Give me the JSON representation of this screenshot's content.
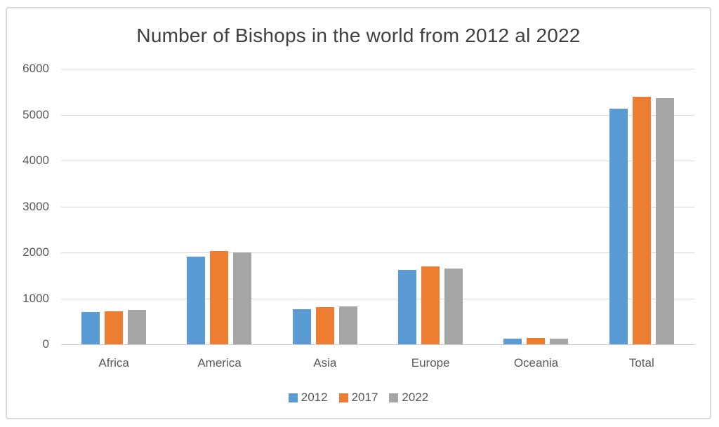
{
  "chart_data": {
    "type": "bar",
    "title": "Number of Bishops in the world from 2012 al 2022",
    "categories": [
      "Africa",
      "America",
      "Asia",
      "Europe",
      "Oceania",
      "Total"
    ],
    "series": [
      {
        "name": "2012",
        "color": "#5B9BD5",
        "values": [
          707,
          1904,
          768,
          1625,
          129,
          5133
        ]
      },
      {
        "name": "2017",
        "color": "#ED7D31",
        "values": [
          718,
          2034,
          804,
          1700,
          133,
          5389
        ]
      },
      {
        "name": "2022",
        "color": "#A5A5A5",
        "values": [
          741,
          2000,
          830,
          1652,
          130,
          5353
        ]
      }
    ],
    "xlabel": "",
    "ylabel": "",
    "ylim": [
      0,
      6000
    ],
    "yticks": [
      0,
      1000,
      2000,
      3000,
      4000,
      5000,
      6000
    ],
    "grid": "horizontal",
    "legend_position": "bottom"
  },
  "colors": {
    "grid": "#D9D9D9",
    "axis_line": "#CCCCCC",
    "axis_text": "#595959",
    "title_text": "#404040",
    "frame_border": "#D9D9D9",
    "background": "#FFFFFF"
  }
}
